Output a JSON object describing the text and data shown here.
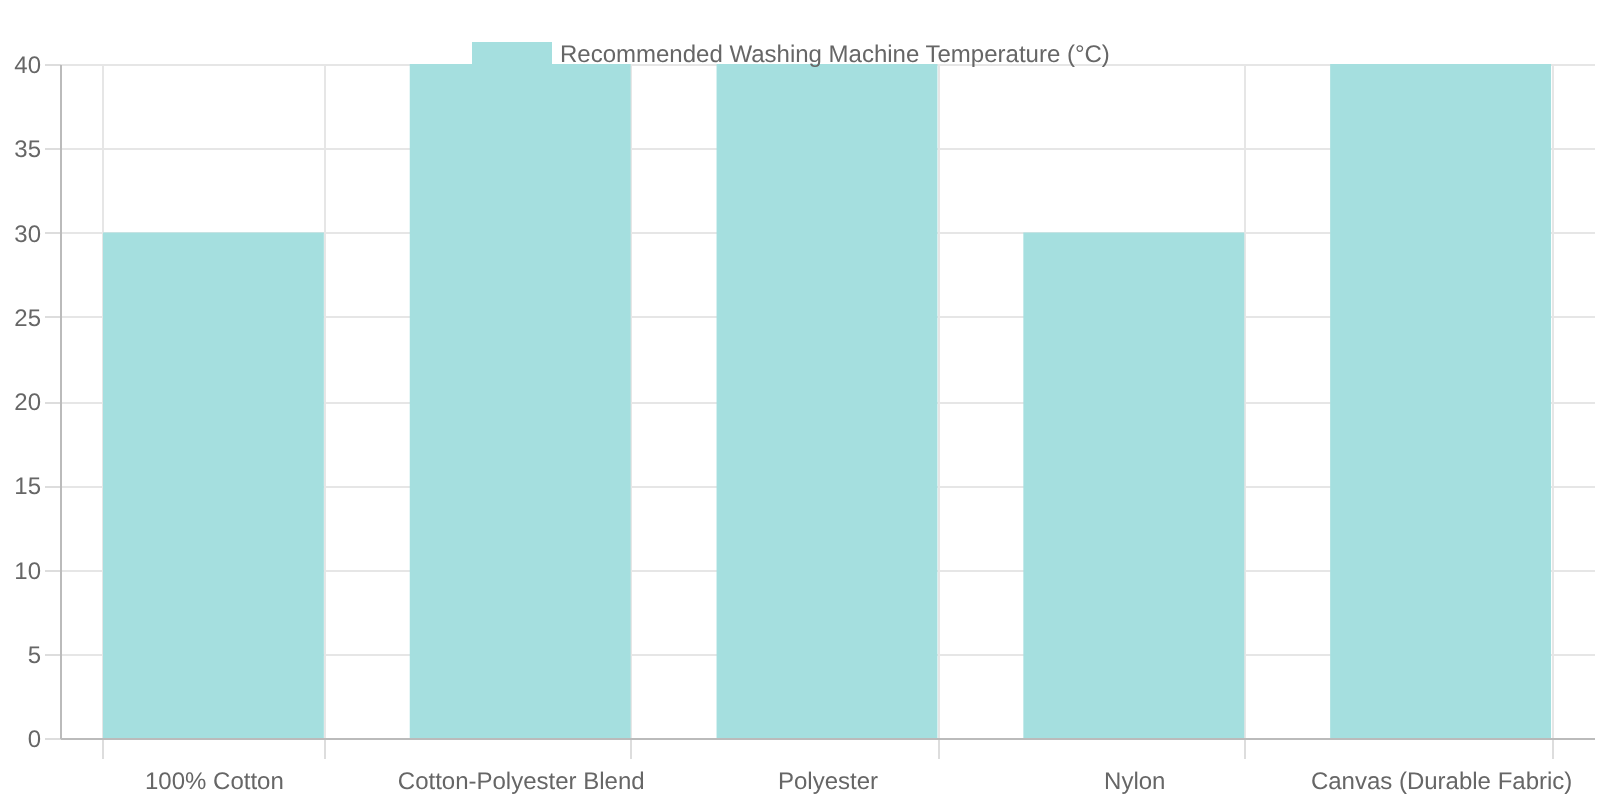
{
  "chart_data": {
    "type": "bar",
    "categories": [
      "100% Cotton",
      "Cotton-Polyester Blend",
      "Polyester",
      "Nylon",
      "Canvas (Durable Fabric)"
    ],
    "series": [
      {
        "name": "Recommended Washing Machine Temperature (°C)",
        "color": "#a5dfdf",
        "values": [
          30,
          40,
          40,
          30,
          40
        ]
      }
    ],
    "ylim": [
      0,
      40
    ],
    "yticks": [
      0,
      5,
      10,
      15,
      20,
      25,
      30,
      35,
      40
    ],
    "grid": true,
    "legend": "top"
  }
}
